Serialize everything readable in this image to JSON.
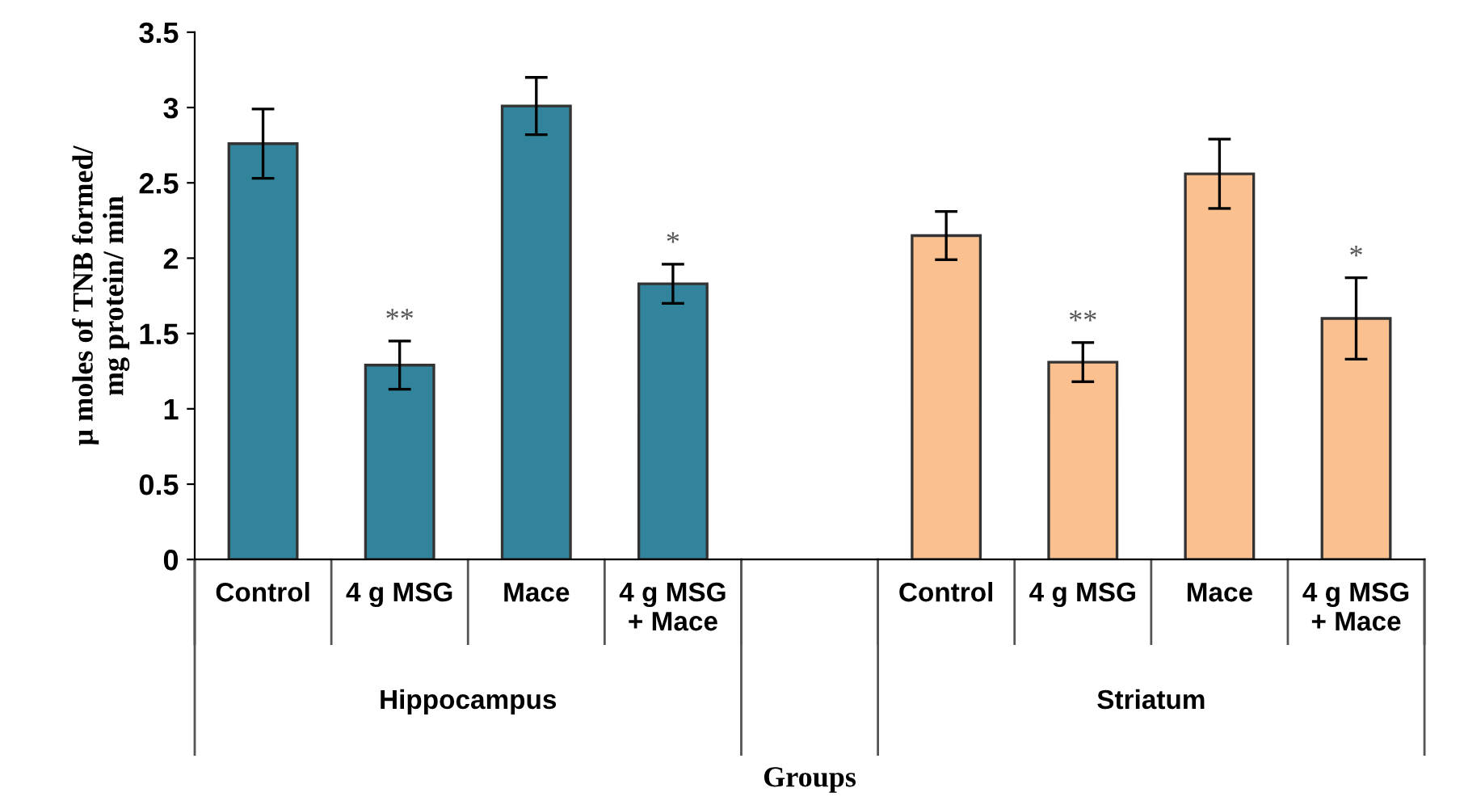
{
  "chart_data": {
    "type": "bar",
    "xlabel": "Groups",
    "ylabel": "µ moles of TNB formed/\nmg protein/ min",
    "categories": [
      "Control",
      "4 g MSG",
      "Mace",
      "4 g MSG\n+ Mace",
      null,
      "Control",
      "4 g MSG",
      "Mace",
      "4 g MSG\n+ Mace"
    ],
    "series": [
      {
        "color": "#31849b",
        "values": [
          2.76,
          1.29,
          3.01,
          1.83,
          null,
          null,
          null,
          null,
          null
        ],
        "errors": [
          0.23,
          0.16,
          0.19,
          0.13,
          null,
          null,
          null,
          null,
          null
        ],
        "value_labels": [
          null,
          "**",
          null,
          "*",
          null,
          null,
          null,
          null,
          null
        ]
      },
      {
        "color": "#fac090",
        "values": [
          null,
          null,
          null,
          null,
          null,
          2.15,
          1.31,
          2.56,
          1.6
        ],
        "errors": [
          null,
          null,
          null,
          null,
          null,
          0.16,
          0.13,
          0.23,
          0.27
        ],
        "value_labels": [
          null,
          null,
          null,
          null,
          null,
          null,
          "**",
          null,
          "*"
        ]
      }
    ],
    "ylim": [
      0,
      3.5
    ],
    "yticks": [
      0,
      0.5,
      1,
      1.5,
      2,
      2.5,
      3,
      3.5
    ],
    "annotations": [
      "Hippocampus",
      "Striatum"
    ],
    "grid": false,
    "legend": false
  }
}
